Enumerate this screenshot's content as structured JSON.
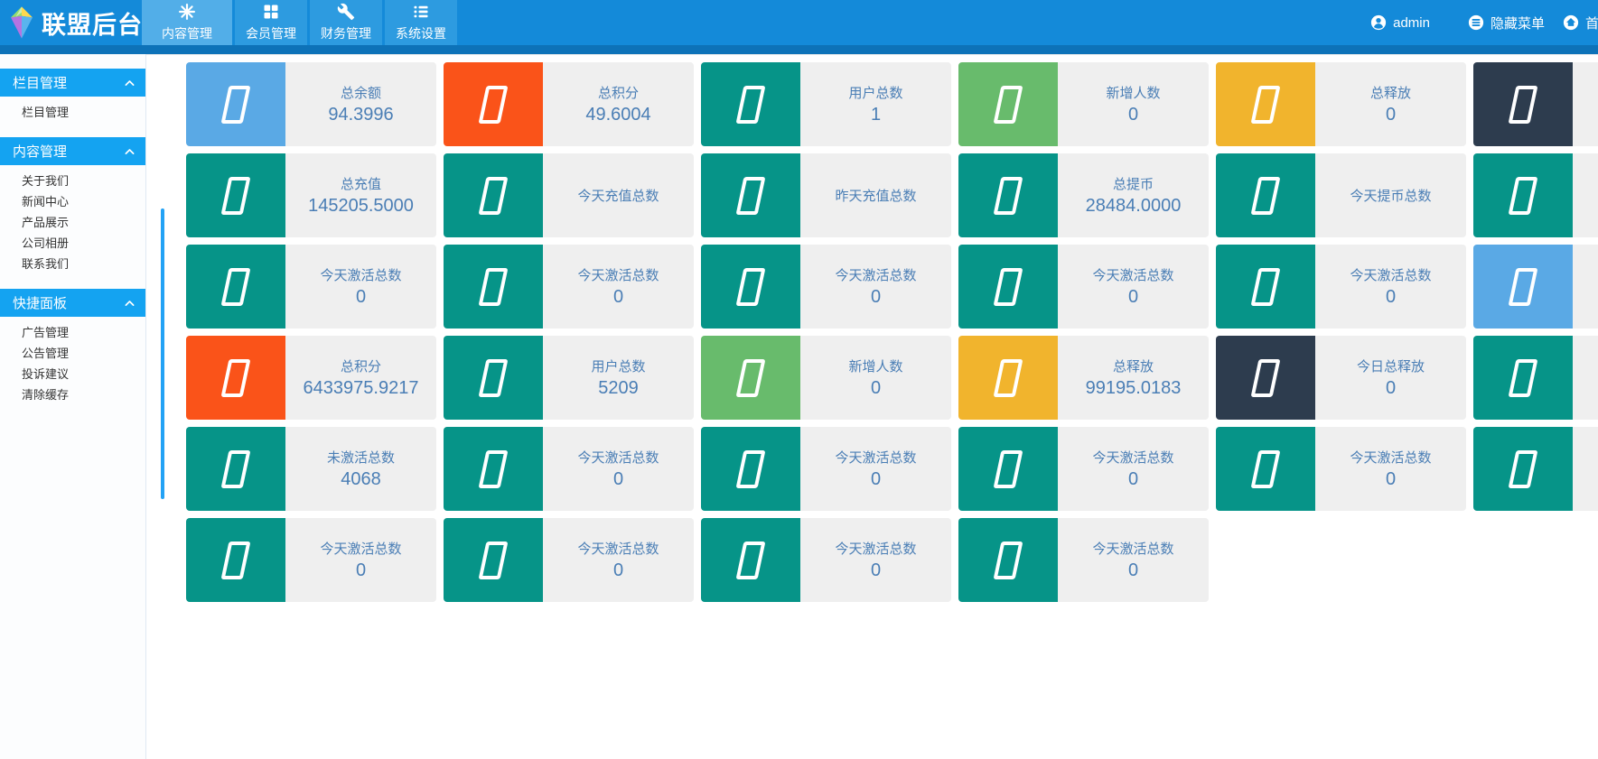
{
  "header": {
    "app_title": "联盟后台",
    "tabs": [
      {
        "label": "内容管理",
        "icon": "asterisk-icon",
        "active": true
      },
      {
        "label": "会员管理",
        "icon": "grid-icon",
        "active": false
      },
      {
        "label": "财务管理",
        "icon": "wrench-icon",
        "active": false
      },
      {
        "label": "系统设置",
        "icon": "list-icon",
        "active": false
      }
    ],
    "user": {
      "label": "admin",
      "icon": "user-icon"
    },
    "actions": [
      {
        "label": "隐藏菜单",
        "icon": "hide-menu-icon"
      },
      {
        "label": "首页",
        "icon": "home-icon"
      }
    ]
  },
  "sidebar": {
    "groups": [
      {
        "title": "栏目管理",
        "items": [
          "栏目管理"
        ]
      },
      {
        "title": "内容管理",
        "items": [
          "关于我们",
          "新闻中心",
          "产品展示",
          "公司相册",
          "联系我们"
        ]
      },
      {
        "title": "快捷面板",
        "items": [
          "广告管理",
          "公告管理",
          "投诉建议",
          "清除缓存"
        ]
      }
    ]
  },
  "palette": {
    "blue": "#5aa9e5",
    "orange": "#fa5319",
    "teal": "#069488",
    "green": "#68bb6c",
    "yellow": "#f1b42d",
    "navy": "#2d3c4e",
    "topbar": "#148ad9",
    "sidebar_header": "#14a3f1",
    "card_text": "#4a7eb5",
    "card_bg": "#efefef"
  },
  "stats": {
    "rows": [
      [
        {
          "label": "总余额",
          "value": "94.3996",
          "color": "blue"
        },
        {
          "label": "总积分",
          "value": "49.6004",
          "color": "orange"
        },
        {
          "label": "用户总数",
          "value": "1",
          "color": "teal"
        },
        {
          "label": "新增人数",
          "value": "0",
          "color": "green"
        },
        {
          "label": "总释放",
          "value": "0",
          "color": "yellow"
        },
        {
          "label": "",
          "value": "",
          "color": "navy"
        }
      ],
      [
        {
          "label": "总充值",
          "value": "145205.5000",
          "color": "teal"
        },
        {
          "label": "今天充值总数",
          "value": "",
          "color": "teal"
        },
        {
          "label": "昨天充值总数",
          "value": "",
          "color": "teal"
        },
        {
          "label": "总提币",
          "value": "28484.0000",
          "color": "teal"
        },
        {
          "label": "今天提币总数",
          "value": "",
          "color": "teal"
        },
        {
          "label": "",
          "value": "",
          "color": "teal"
        }
      ],
      [
        {
          "label": "今天激活总数",
          "value": "0",
          "color": "teal"
        },
        {
          "label": "今天激活总数",
          "value": "0",
          "color": "teal"
        },
        {
          "label": "今天激活总数",
          "value": "0",
          "color": "teal"
        },
        {
          "label": "今天激活总数",
          "value": "0",
          "color": "teal"
        },
        {
          "label": "今天激活总数",
          "value": "0",
          "color": "teal"
        },
        {
          "label": "",
          "value": "",
          "color": "blue"
        }
      ],
      [
        {
          "label": "总积分",
          "value": "6433975.9217",
          "color": "orange"
        },
        {
          "label": "用户总数",
          "value": "5209",
          "color": "teal"
        },
        {
          "label": "新增人数",
          "value": "0",
          "color": "green"
        },
        {
          "label": "总释放",
          "value": "99195.0183",
          "color": "yellow"
        },
        {
          "label": "今日总释放",
          "value": "0",
          "color": "navy"
        },
        {
          "label": "",
          "value": "",
          "color": "teal"
        }
      ],
      [
        {
          "label": "未激活总数",
          "value": "4068",
          "color": "teal"
        },
        {
          "label": "今天激活总数",
          "value": "0",
          "color": "teal"
        },
        {
          "label": "今天激活总数",
          "value": "0",
          "color": "teal"
        },
        {
          "label": "今天激活总数",
          "value": "0",
          "color": "teal"
        },
        {
          "label": "今天激活总数",
          "value": "0",
          "color": "teal"
        },
        {
          "label": "",
          "value": "",
          "color": "teal"
        }
      ],
      [
        {
          "label": "今天激活总数",
          "value": "0",
          "color": "teal"
        },
        {
          "label": "今天激活总数",
          "value": "0",
          "color": "teal"
        },
        {
          "label": "今天激活总数",
          "value": "0",
          "color": "teal"
        },
        {
          "label": "今天激活总数",
          "value": "0",
          "color": "teal"
        }
      ]
    ]
  }
}
